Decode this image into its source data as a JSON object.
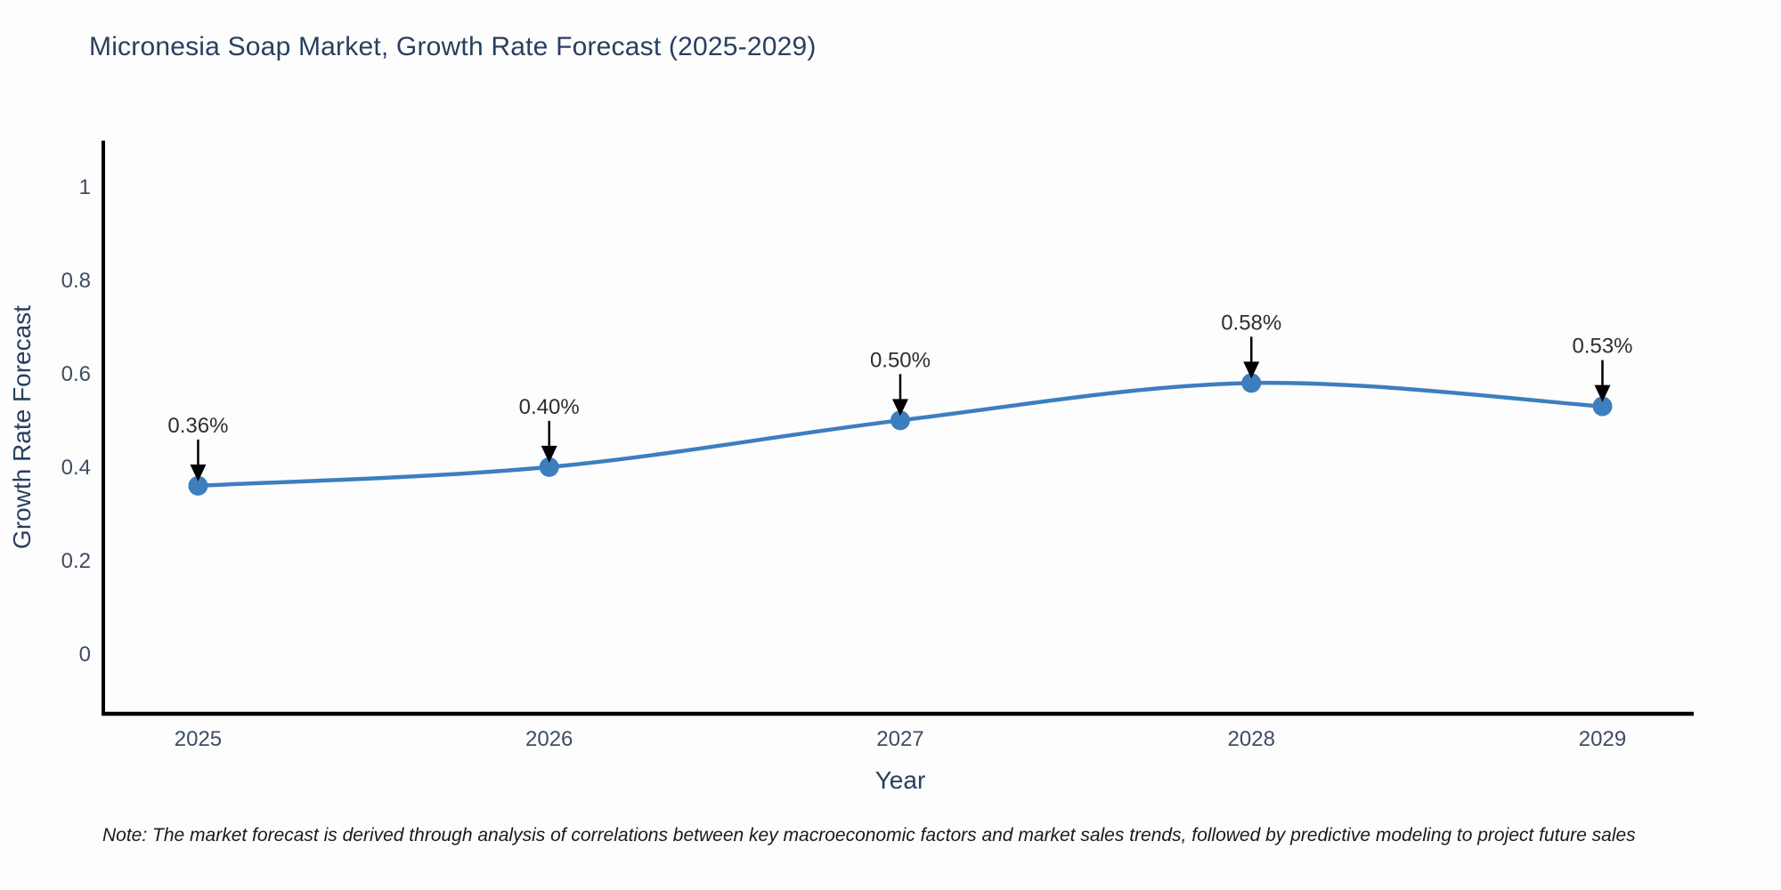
{
  "title": "Micronesia Soap Market, Growth Rate Forecast (2025-2029)",
  "note": "Note: The market forecast is derived through analysis of correlations between key macroeconomic factors and market sales trends, followed by predictive modeling to project future sales",
  "chart_data": {
    "type": "line",
    "title": "Micronesia Soap Market, Growth Rate Forecast (2025-2029)",
    "x": [
      2025,
      2026,
      2027,
      2028,
      2029
    ],
    "y": [
      0.36,
      0.4,
      0.5,
      0.58,
      0.53
    ],
    "series": [
      {
        "name": "Growth Rate Forecast",
        "values": [
          0.36,
          0.4,
          0.5,
          0.58,
          0.53
        ]
      }
    ],
    "point_labels": [
      "0.36%",
      "0.40%",
      "0.50%",
      "0.58%",
      "0.53%"
    ],
    "xlabel": "Year",
    "ylabel": "Growth Rate Forecast",
    "xtick_labels": [
      "2025",
      "2026",
      "2027",
      "2028",
      "2029"
    ],
    "yticks": [
      0,
      0.2,
      0.4,
      0.6,
      0.8,
      1
    ],
    "ytick_labels": [
      "0",
      "0.2",
      "0.4",
      "0.6",
      "0.8",
      "1"
    ],
    "xlim": [
      2024.73,
      2029.26
    ],
    "ylim": [
      -0.128,
      1.095
    ],
    "line_shape": "spline",
    "grid": false,
    "legend": "none",
    "marker_size": 11,
    "colors": {
      "line": "#3d7ebf",
      "marker": "#3d7ebf",
      "axis": "#000000",
      "text": "#2a3f5f",
      "tick_text": "#3e4c63",
      "annotation_text": "#2e2e2e",
      "arrow": "#000000",
      "background": "#fdfdfd"
    }
  }
}
